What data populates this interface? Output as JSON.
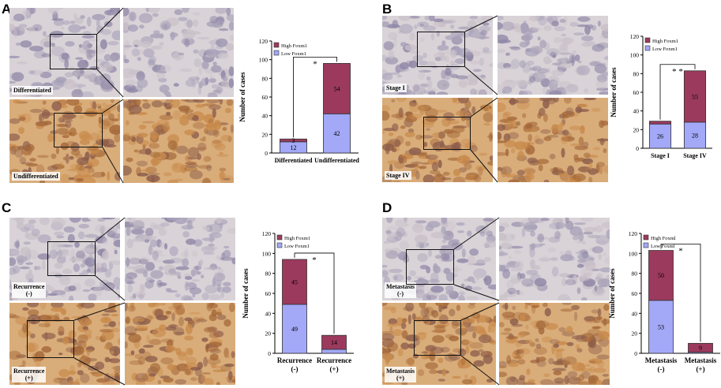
{
  "colors": {
    "high": "#9c3a5e",
    "low": "#a3a8f7",
    "tissue_he": [
      "#c9c0c8",
      "#a9a2b9",
      "#8f86a6",
      "#d9d3d8"
    ],
    "tissue_brown": [
      "#c88a4c",
      "#a5693a",
      "#8a5b4a",
      "#d9ad7a"
    ]
  },
  "panels": [
    {
      "letter": "A",
      "top_label": "Differentiated",
      "bottom_label": "Undifferentiated",
      "chart_data": {
        "type": "bar",
        "stacked": true,
        "categories": [
          "Differentiated",
          "Undifferentiated"
        ],
        "series": [
          {
            "name": "Low Foxm1",
            "values": [
              12,
              42
            ]
          },
          {
            "name": "High Foxm1",
            "values": [
              3,
              54
            ]
          }
        ],
        "value_labels": {
          "low": [
            "12",
            "42"
          ],
          "high": [
            "3",
            "54"
          ]
        },
        "ylabel": "Number of cases",
        "ylim": [
          0,
          120
        ],
        "yticks": [
          "0",
          "20",
          "40",
          "60",
          "80",
          "100",
          "120"
        ],
        "legend": [
          "High Foxm1",
          "Low Foxm1"
        ],
        "significance": "*",
        "legend_position": "top-left"
      }
    },
    {
      "letter": "B",
      "top_label": "Stage  I",
      "bottom_label": "Stage IV",
      "chart_data": {
        "type": "bar",
        "stacked": true,
        "categories": [
          "Stage  I",
          "Stage  IV"
        ],
        "series": [
          {
            "name": "Low Foxm1",
            "values": [
              26,
              28
            ]
          },
          {
            "name": "High Foxm1",
            "values": [
              3,
              55
            ]
          }
        ],
        "value_labels": {
          "low": [
            "26",
            "28"
          ],
          "high": [
            "",
            "55"
          ]
        },
        "ylabel": "Number of cases",
        "ylim": [
          0,
          120
        ],
        "yticks": [
          "0",
          "20",
          "40",
          "60",
          "80",
          "100",
          "120"
        ],
        "legend": [
          "High Foxm1",
          "Low Foxm1"
        ],
        "significance": "* *",
        "legend_position": "top-left"
      }
    },
    {
      "letter": "C",
      "top_label": "Recurrence\n(-)",
      "bottom_label": "Recurrence\n(+)",
      "chart_data": {
        "type": "bar",
        "stacked": true,
        "categories": [
          "Recurrence\n(-)",
          "Recurrence\n(+)"
        ],
        "series": [
          {
            "name": "Low Foxm1",
            "values": [
              49,
              4
            ]
          },
          {
            "name": "High Foxm1",
            "values": [
              45,
              14
            ]
          }
        ],
        "value_labels": {
          "low": [
            "49",
            ""
          ],
          "high": [
            "45",
            "14"
          ]
        },
        "ylabel": "Number of cases",
        "ylim": [
          0,
          120
        ],
        "yticks": [
          "0",
          "20",
          "40",
          "60",
          "80",
          "100",
          "120"
        ],
        "legend": [
          "High Foxm1",
          "Low Foxm1"
        ],
        "significance": "*",
        "legend_position": "top-left"
      }
    },
    {
      "letter": "D",
      "top_label": "Metastasis\n(-)",
      "bottom_label": "Metastasis\n(+)",
      "chart_data": {
        "type": "bar",
        "stacked": true,
        "categories": [
          "Metastasis\n(-)",
          "Metastasis\n(+)"
        ],
        "series": [
          {
            "name": "Low Foxml",
            "values": [
              53,
              1
            ]
          },
          {
            "name": "High Foxml",
            "values": [
              50,
              9
            ]
          }
        ],
        "value_labels": {
          "low": [
            "53",
            ""
          ],
          "high": [
            "50",
            "9"
          ]
        },
        "ylabel": "Number of cases",
        "ylim": [
          0,
          120
        ],
        "yticks": [
          "0",
          "20",
          "40",
          "60",
          "80",
          "100",
          "120"
        ],
        "legend": [
          "High Foxml",
          "Low Foxml"
        ],
        "significance": "*",
        "legend_position": "top-left"
      }
    }
  ]
}
